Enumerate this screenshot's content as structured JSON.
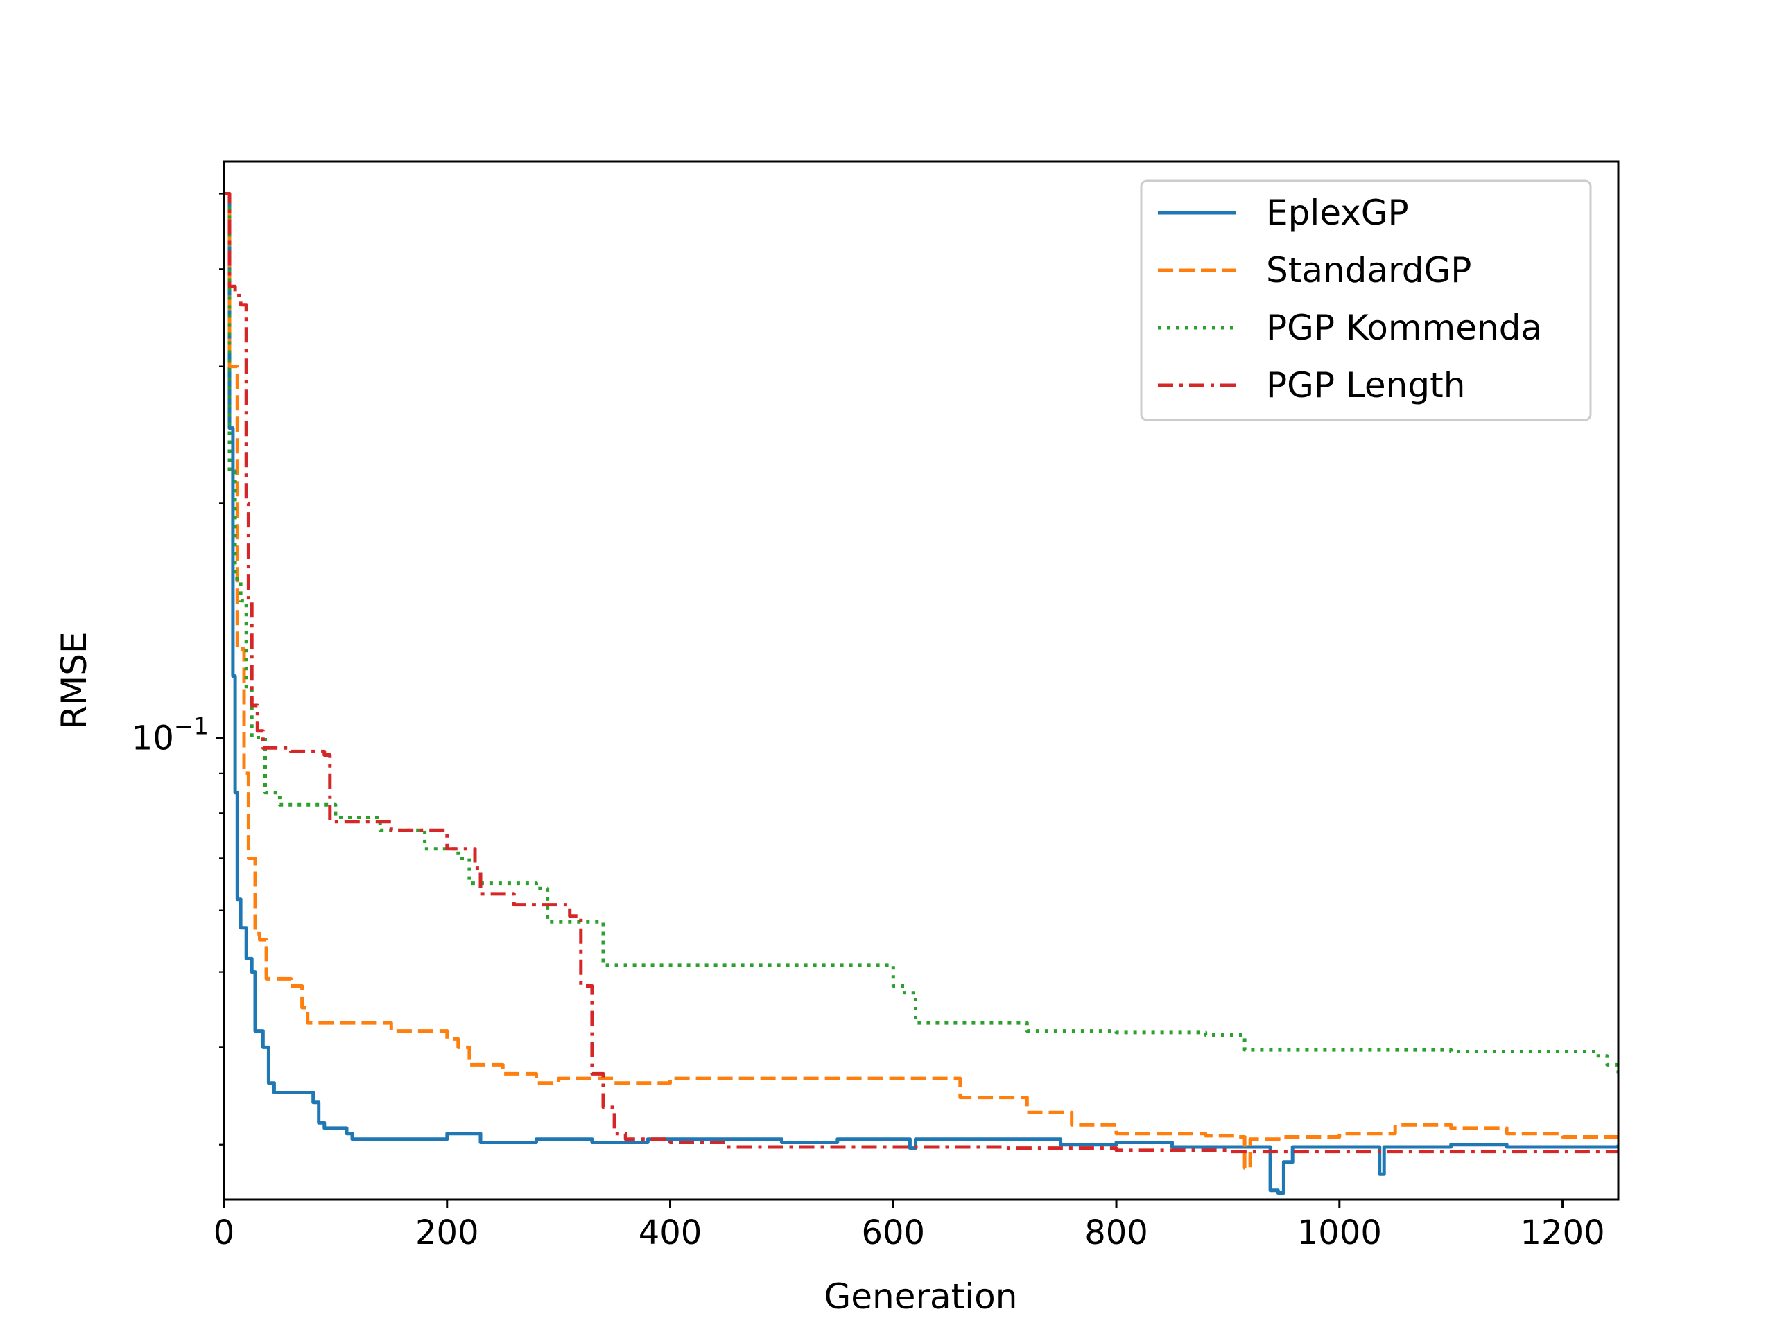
{
  "chart_data": {
    "type": "line",
    "xlabel": "Generation",
    "ylabel": "RMSE",
    "xlim": [
      0,
      1250
    ],
    "ylim": [
      0.0255,
      0.55
    ],
    "yscale": "log",
    "grid": false,
    "legend_position": "top-right",
    "x_ticks": [
      {
        "value": 0,
        "label": "0"
      },
      {
        "value": 200,
        "label": "200"
      },
      {
        "value": 400,
        "label": "400"
      },
      {
        "value": 600,
        "label": "600"
      },
      {
        "value": 800,
        "label": "800"
      },
      {
        "value": 1000,
        "label": "1000"
      },
      {
        "value": 1200,
        "label": "1200"
      }
    ],
    "y_ticks": [
      {
        "value": 0.1,
        "base": "10",
        "exponent": "−1"
      }
    ],
    "series": [
      {
        "name": "EplexGP",
        "color": "#1f77b4",
        "dash": "solid",
        "points": [
          [
            0,
            0.5
          ],
          [
            5,
            0.25
          ],
          [
            8,
            0.12
          ],
          [
            10,
            0.085
          ],
          [
            12,
            0.062
          ],
          [
            15,
            0.057
          ],
          [
            20,
            0.052
          ],
          [
            25,
            0.05
          ],
          [
            28,
            0.042
          ],
          [
            35,
            0.04
          ],
          [
            40,
            0.036
          ],
          [
            45,
            0.035
          ],
          [
            60,
            0.035
          ],
          [
            80,
            0.034
          ],
          [
            85,
            0.032
          ],
          [
            90,
            0.0315
          ],
          [
            110,
            0.031
          ],
          [
            115,
            0.0305
          ],
          [
            150,
            0.0305
          ],
          [
            200,
            0.031
          ],
          [
            230,
            0.0302
          ],
          [
            280,
            0.0305
          ],
          [
            330,
            0.0302
          ],
          [
            380,
            0.0305
          ],
          [
            450,
            0.0305
          ],
          [
            500,
            0.0302
          ],
          [
            550,
            0.0305
          ],
          [
            600,
            0.0305
          ],
          [
            615,
            0.0297
          ],
          [
            620,
            0.0305
          ],
          [
            700,
            0.0305
          ],
          [
            750,
            0.03
          ],
          [
            800,
            0.0302
          ],
          [
            850,
            0.0298
          ],
          [
            900,
            0.0298
          ],
          [
            935,
            0.0298
          ],
          [
            938,
            0.0262
          ],
          [
            945,
            0.026
          ],
          [
            950,
            0.0285
          ],
          [
            958,
            0.0298
          ],
          [
            1000,
            0.0298
          ],
          [
            1030,
            0.0298
          ],
          [
            1036,
            0.0275
          ],
          [
            1040,
            0.0298
          ],
          [
            1100,
            0.03
          ],
          [
            1150,
            0.0298
          ],
          [
            1200,
            0.0298
          ],
          [
            1250,
            0.03
          ]
        ]
      },
      {
        "name": "StandardGP",
        "color": "#ff7f0e",
        "dash": "dashed",
        "points": [
          [
            0,
            0.5
          ],
          [
            5,
            0.3
          ],
          [
            12,
            0.13
          ],
          [
            18,
            0.09
          ],
          [
            22,
            0.07
          ],
          [
            28,
            0.056
          ],
          [
            32,
            0.055
          ],
          [
            38,
            0.049
          ],
          [
            60,
            0.048
          ],
          [
            70,
            0.045
          ],
          [
            75,
            0.043
          ],
          [
            100,
            0.043
          ],
          [
            150,
            0.042
          ],
          [
            200,
            0.041
          ],
          [
            210,
            0.04
          ],
          [
            220,
            0.038
          ],
          [
            250,
            0.037
          ],
          [
            280,
            0.036
          ],
          [
            300,
            0.0365
          ],
          [
            350,
            0.036
          ],
          [
            400,
            0.0365
          ],
          [
            450,
            0.0365
          ],
          [
            500,
            0.0365
          ],
          [
            550,
            0.0365
          ],
          [
            600,
            0.0365
          ],
          [
            650,
            0.0365
          ],
          [
            660,
            0.0345
          ],
          [
            680,
            0.0345
          ],
          [
            700,
            0.0345
          ],
          [
            720,
            0.033
          ],
          [
            760,
            0.0318
          ],
          [
            800,
            0.031
          ],
          [
            850,
            0.031
          ],
          [
            880,
            0.0308
          ],
          [
            910,
            0.0307
          ],
          [
            915,
            0.028
          ],
          [
            920,
            0.0305
          ],
          [
            950,
            0.0307
          ],
          [
            1000,
            0.031
          ],
          [
            1050,
            0.0318
          ],
          [
            1100,
            0.0315
          ],
          [
            1150,
            0.031
          ],
          [
            1200,
            0.0307
          ],
          [
            1250,
            0.031
          ]
        ]
      },
      {
        "name": "PGP Kommenda",
        "color": "#2ca02c",
        "dash": "dotted",
        "points": [
          [
            0,
            0.5
          ],
          [
            5,
            0.22
          ],
          [
            10,
            0.16
          ],
          [
            15,
            0.15
          ],
          [
            20,
            0.115
          ],
          [
            25,
            0.1
          ],
          [
            35,
            0.1
          ],
          [
            37,
            0.085
          ],
          [
            50,
            0.082
          ],
          [
            100,
            0.079
          ],
          [
            140,
            0.076
          ],
          [
            180,
            0.072
          ],
          [
            210,
            0.07
          ],
          [
            220,
            0.065
          ],
          [
            280,
            0.064
          ],
          [
            290,
            0.058
          ],
          [
            330,
            0.058
          ],
          [
            340,
            0.051
          ],
          [
            580,
            0.051
          ],
          [
            600,
            0.048
          ],
          [
            610,
            0.047
          ],
          [
            620,
            0.043
          ],
          [
            700,
            0.043
          ],
          [
            720,
            0.042
          ],
          [
            800,
            0.0418
          ],
          [
            850,
            0.0418
          ],
          [
            880,
            0.0415
          ],
          [
            915,
            0.0397
          ],
          [
            1000,
            0.0397
          ],
          [
            1050,
            0.0397
          ],
          [
            1100,
            0.0395
          ],
          [
            1200,
            0.0395
          ],
          [
            1230,
            0.039
          ],
          [
            1240,
            0.038
          ],
          [
            1250,
            0.037
          ]
        ]
      },
      {
        "name": "PGP Length",
        "color": "#d62728",
        "dash": "dashdot",
        "points": [
          [
            0,
            0.5
          ],
          [
            5,
            0.38
          ],
          [
            10,
            0.37
          ],
          [
            15,
            0.36
          ],
          [
            20,
            0.2
          ],
          [
            22,
            0.15
          ],
          [
            25,
            0.11
          ],
          [
            30,
            0.102
          ],
          [
            35,
            0.097
          ],
          [
            60,
            0.096
          ],
          [
            90,
            0.095
          ],
          [
            95,
            0.078
          ],
          [
            150,
            0.076
          ],
          [
            200,
            0.072
          ],
          [
            225,
            0.068
          ],
          [
            230,
            0.063
          ],
          [
            260,
            0.061
          ],
          [
            310,
            0.059
          ],
          [
            320,
            0.048
          ],
          [
            330,
            0.037
          ],
          [
            340,
            0.0335
          ],
          [
            350,
            0.031
          ],
          [
            360,
            0.0305
          ],
          [
            400,
            0.0302
          ],
          [
            450,
            0.0298
          ],
          [
            500,
            0.0298
          ],
          [
            600,
            0.0298
          ],
          [
            700,
            0.0297
          ],
          [
            800,
            0.0295
          ],
          [
            900,
            0.0294
          ],
          [
            1000,
            0.0294
          ],
          [
            1100,
            0.0294
          ],
          [
            1200,
            0.0294
          ],
          [
            1250,
            0.0294
          ]
        ]
      }
    ]
  }
}
